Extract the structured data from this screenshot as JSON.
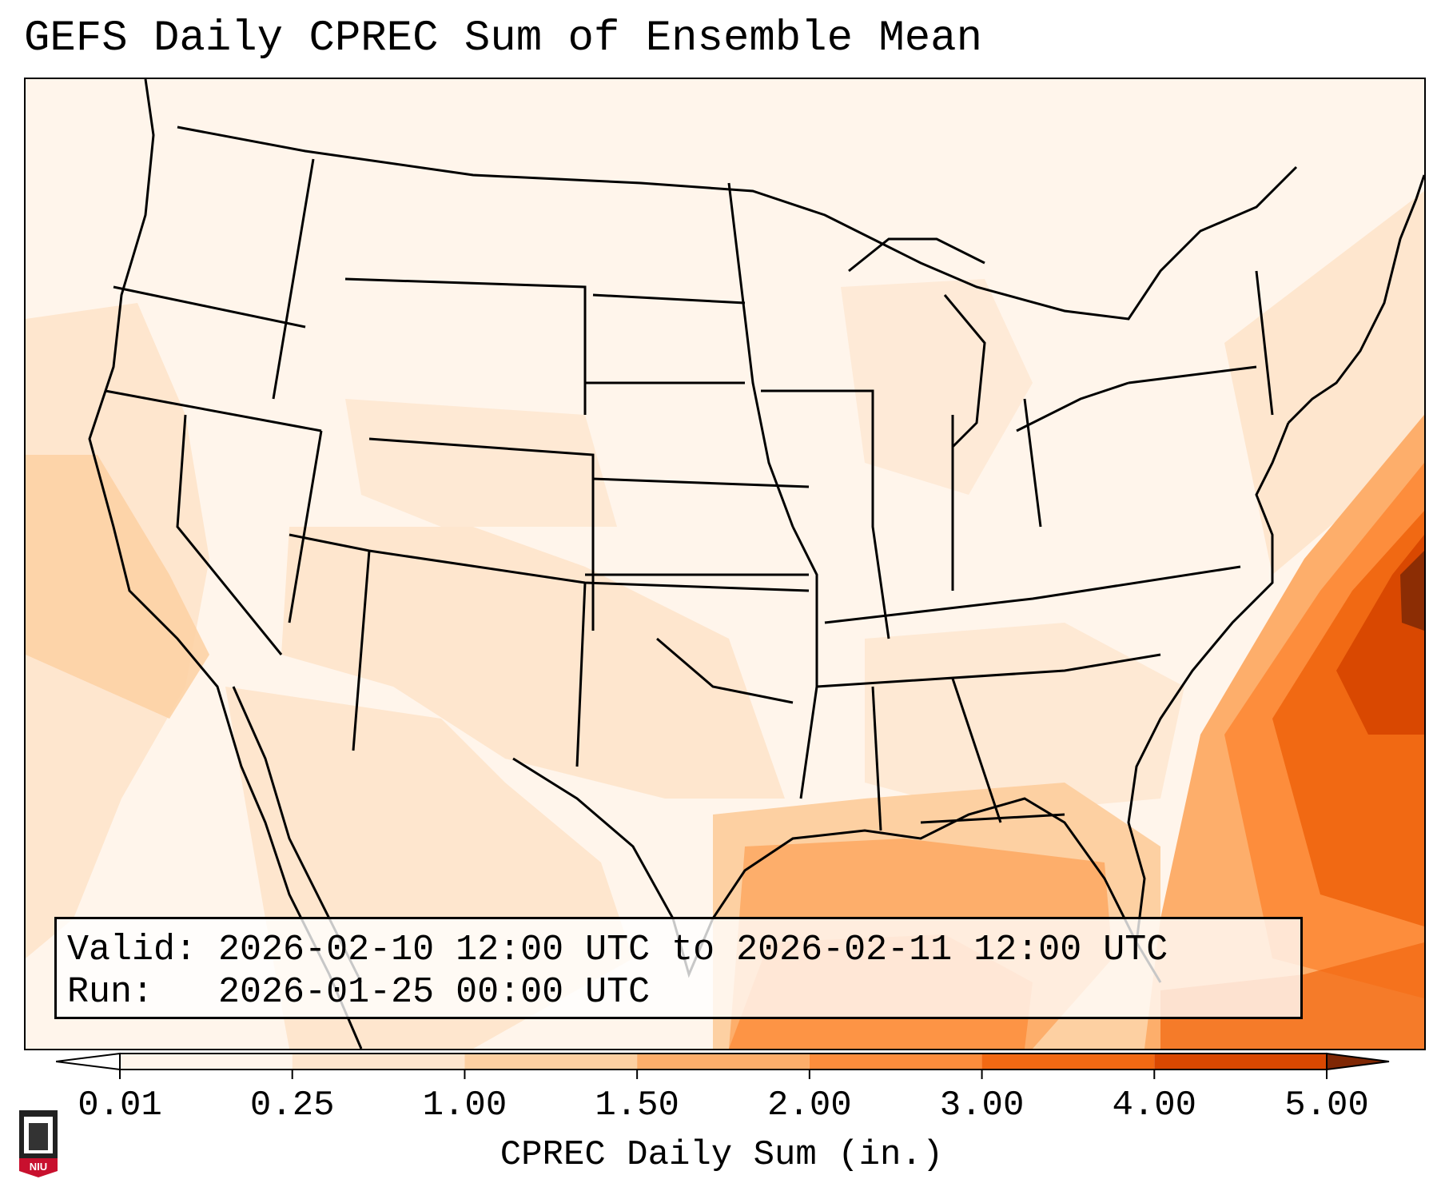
{
  "title": "GEFS Daily CPREC Sum of Ensemble Mean",
  "info": {
    "valid_label": "Valid:",
    "valid_value": "2026-02-10 12:00 UTC to 2026-02-11 12:00 UTC",
    "run_label": "Run:  ",
    "run_value": "2026-01-25 00:00 UTC"
  },
  "colorbar": {
    "title": "CPREC Daily Sum (in.)",
    "ticks": [
      "0.01",
      "0.25",
      "1.00",
      "1.50",
      "2.00",
      "3.00",
      "4.00",
      "5.00"
    ],
    "colors": [
      "#fff5eb",
      "#fee6ce",
      "#fdd0a2",
      "#fdae6b",
      "#fd8d3c",
      "#f16913",
      "#d94801",
      "#8c2d04"
    ],
    "under_color": "#ffffff",
    "over_color": "#7f2704",
    "extend": "both"
  },
  "logo": {
    "text": "NIU",
    "color": "#c8102e"
  }
}
